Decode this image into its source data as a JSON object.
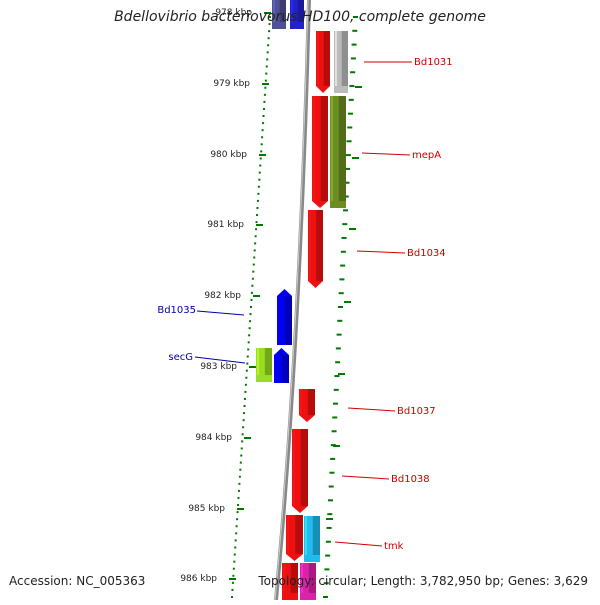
{
  "title": "Bdellovibrio bacteriovorus HD100, complete genome",
  "footer": {
    "accession": "Accession: NC_005363",
    "topology": "Topology: circular; Length: 3,782,950 bp; Genes: 3,629"
  },
  "ruler": {
    "ticks": [
      "978 kbp",
      "979 kbp",
      "980 kbp",
      "981 kbp",
      "982 kbp",
      "983 kbp",
      "984 kbp",
      "985 kbp",
      "986 kbp"
    ],
    "tick_color": "#007700"
  },
  "backbone_color": "#888888",
  "genes": [
    {
      "id": "gene-top-purple",
      "strand": "minus",
      "color": "#505096"
    },
    {
      "id": "gene-top-blue",
      "strand": "minus",
      "color": "#2222cc"
    },
    {
      "id": "gene-Bd1031",
      "strand": "plus",
      "color": "#ee1111",
      "label": "Bd1031"
    },
    {
      "id": "gene-Bd1031-gray",
      "strand": "plus",
      "color": "#bbbbbb"
    },
    {
      "id": "gene-mepA-red",
      "strand": "plus",
      "color": "#ee1111",
      "label": "mepA"
    },
    {
      "id": "gene-mepA-green",
      "strand": "plus",
      "color": "#6b8e23"
    },
    {
      "id": "gene-Bd1034",
      "strand": "plus",
      "color": "#ee1111",
      "label": "Bd1034"
    },
    {
      "id": "gene-Bd1035",
      "strand": "minus",
      "color": "#0000ee",
      "label": "Bd1035"
    },
    {
      "id": "gene-secG-blue",
      "strand": "minus",
      "color": "#0000ee"
    },
    {
      "id": "gene-secG-lime",
      "strand": "minus",
      "color": "#99dd22",
      "label": "secG"
    },
    {
      "id": "gene-Bd1037",
      "strand": "plus",
      "color": "#ee1111",
      "label": "Bd1037"
    },
    {
      "id": "gene-Bd1038",
      "strand": "plus",
      "color": "#ee1111",
      "label": "Bd1038"
    },
    {
      "id": "gene-tmk-red",
      "strand": "plus",
      "color": "#ee1111",
      "label": "tmk"
    },
    {
      "id": "gene-tmk-cyan",
      "strand": "plus",
      "color": "#22bbee"
    },
    {
      "id": "gene-bottom-red",
      "strand": "plus",
      "color": "#ee1111"
    },
    {
      "id": "gene-bottom-magenta",
      "strand": "plus",
      "color": "#dd22aa"
    }
  ],
  "label_colors": {
    "plus": "#cc0000",
    "minus": "#0000aa"
  }
}
